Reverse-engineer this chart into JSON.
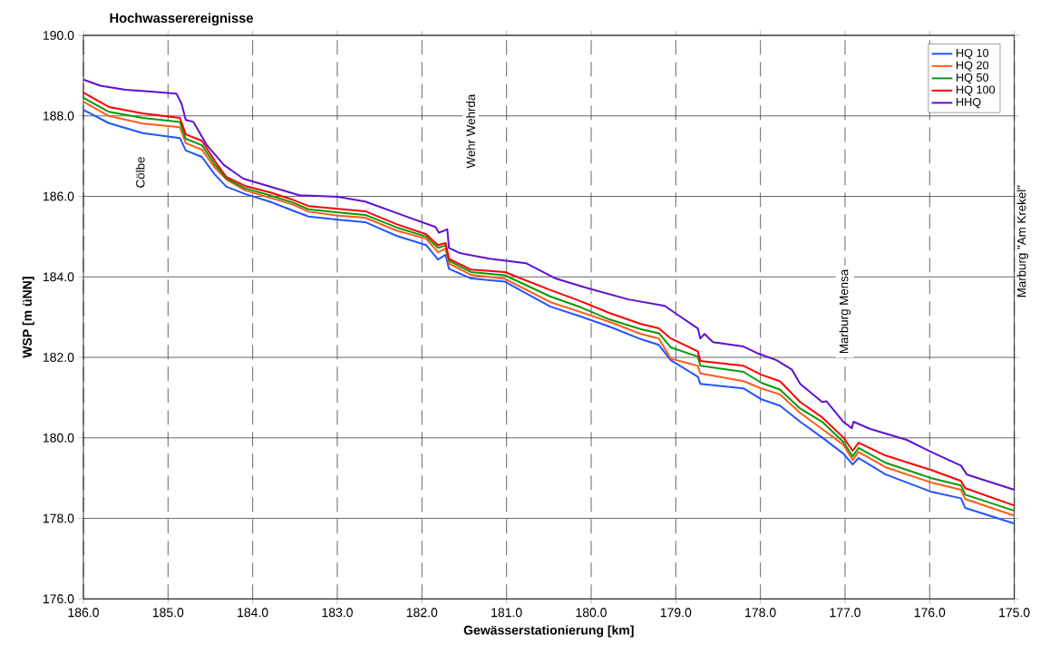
{
  "chart_data": {
    "type": "line",
    "title": "Hochwasserereignisse",
    "xlabel": "Gewässerstationierung [km]",
    "ylabel": "WSP [m üNN]",
    "x": [
      186.0,
      185.7,
      185.3,
      184.86,
      184.79,
      184.6,
      184.45,
      184.31,
      184.09,
      183.8,
      183.53,
      183.34,
      182.99,
      182.67,
      182.3,
      181.95,
      181.81,
      181.72,
      181.68,
      181.42,
      181.02,
      180.48,
      180.13,
      179.78,
      179.41,
      179.2,
      179.06,
      178.74,
      178.71,
      178.2,
      177.99,
      177.77,
      177.53,
      177.27,
      177.02,
      176.91,
      176.84,
      176.52,
      175.98,
      175.63,
      175.58,
      175.0
    ],
    "series": [
      {
        "name": "HQ 10",
        "color": "#2255ff",
        "values": [
          188.15,
          187.82,
          187.57,
          187.45,
          187.14,
          186.98,
          186.55,
          186.24,
          186.06,
          185.87,
          185.65,
          185.5,
          185.42,
          185.36,
          185.02,
          184.79,
          184.43,
          184.55,
          184.2,
          183.96,
          183.88,
          183.26,
          183.02,
          182.76,
          182.45,
          182.31,
          181.93,
          181.52,
          181.34,
          181.23,
          180.96,
          180.8,
          180.4,
          180.01,
          179.61,
          179.34,
          179.5,
          179.09,
          178.66,
          178.5,
          178.26,
          177.87
        ]
      },
      {
        "name": "HQ 20",
        "color": "#ff5a1e",
        "values": [
          188.35,
          188.0,
          187.81,
          187.72,
          187.32,
          187.16,
          186.72,
          186.42,
          186.15,
          185.97,
          185.8,
          185.62,
          185.52,
          185.47,
          185.15,
          184.95,
          184.61,
          184.7,
          184.33,
          184.05,
          183.95,
          183.37,
          183.13,
          182.88,
          182.58,
          182.47,
          181.97,
          181.79,
          181.6,
          181.41,
          181.23,
          181.08,
          180.62,
          180.22,
          179.83,
          179.45,
          179.65,
          179.27,
          178.89,
          178.71,
          178.48,
          178.07
        ]
      },
      {
        "name": "HQ 50",
        "color": "#0a9a0a",
        "values": [
          188.45,
          188.1,
          187.95,
          187.85,
          187.43,
          187.27,
          186.8,
          186.44,
          186.2,
          186.03,
          185.85,
          185.68,
          185.6,
          185.54,
          185.23,
          185.0,
          184.72,
          184.78,
          184.4,
          184.12,
          184.04,
          183.51,
          183.25,
          182.94,
          182.7,
          182.6,
          182.25,
          182.02,
          181.79,
          181.64,
          181.37,
          181.2,
          180.73,
          180.4,
          179.9,
          179.54,
          179.75,
          179.38,
          179.0,
          178.82,
          178.59,
          178.19
        ]
      },
      {
        "name": "HQ 100",
        "color": "#ff0000",
        "values": [
          188.58,
          188.22,
          188.06,
          187.95,
          187.54,
          187.38,
          186.89,
          186.48,
          186.26,
          186.1,
          185.92,
          185.76,
          185.69,
          185.63,
          185.31,
          185.06,
          184.79,
          184.84,
          184.45,
          184.18,
          184.12,
          183.67,
          183.4,
          183.1,
          182.83,
          182.72,
          182.47,
          182.15,
          181.91,
          181.79,
          181.57,
          181.41,
          180.89,
          180.51,
          180.01,
          179.68,
          179.88,
          179.56,
          179.2,
          178.93,
          178.75,
          178.32
        ]
      },
      {
        "name": "HHQ",
        "color": "#6010d0",
        "x": [
          186.0,
          185.8,
          185.5,
          185.2,
          184.9,
          184.84,
          184.79,
          184.7,
          184.54,
          184.34,
          184.11,
          183.45,
          182.99,
          182.67,
          182.24,
          181.84,
          181.8,
          181.7,
          181.68,
          181.55,
          181.2,
          180.77,
          180.42,
          180.06,
          179.56,
          179.13,
          178.98,
          178.74,
          178.71,
          178.66,
          178.56,
          178.2,
          178.02,
          177.81,
          177.63,
          177.53,
          177.27,
          177.22,
          177.02,
          176.92,
          176.9,
          176.7,
          176.27,
          175.98,
          175.63,
          175.56,
          175.0
        ],
        "values": [
          188.9,
          188.75,
          188.65,
          188.6,
          188.55,
          188.3,
          187.9,
          187.85,
          187.27,
          186.78,
          186.44,
          186.03,
          185.99,
          185.87,
          185.54,
          185.24,
          185.1,
          185.18,
          184.72,
          184.59,
          184.45,
          184.34,
          183.96,
          183.73,
          183.44,
          183.28,
          183.06,
          182.72,
          182.47,
          182.58,
          182.38,
          182.27,
          182.09,
          181.93,
          181.7,
          181.34,
          180.89,
          180.91,
          180.4,
          180.24,
          180.4,
          180.22,
          179.95,
          179.65,
          179.31,
          179.09,
          178.71
        ]
      }
    ],
    "xlim": [
      186,
      175
    ],
    "xticks": [
      {
        "value": 186,
        "label": "186.0"
      },
      {
        "value": 185,
        "label": "185.0"
      },
      {
        "value": 184,
        "label": "184.0"
      },
      {
        "value": 183,
        "label": "183.0"
      },
      {
        "value": 182,
        "label": "182.0"
      },
      {
        "value": 181,
        "label": "181.0"
      },
      {
        "value": 180,
        "label": "180.0"
      },
      {
        "value": 179,
        "label": "179.0"
      },
      {
        "value": 178,
        "label": "178.0"
      },
      {
        "value": 177,
        "label": "177.0"
      },
      {
        "value": 176,
        "label": "176.0"
      },
      {
        "value": 175,
        "label": "175.0"
      }
    ],
    "ylim": [
      176,
      190
    ],
    "yticks": [
      {
        "value": 176,
        "label": "176.0"
      },
      {
        "value": 178,
        "label": "178.0"
      },
      {
        "value": 180,
        "label": "180.0"
      },
      {
        "value": 182,
        "label": "182.0"
      },
      {
        "value": 184,
        "label": "184.0"
      },
      {
        "value": 186,
        "label": "186.0"
      },
      {
        "value": 188,
        "label": "188.0"
      },
      {
        "value": 190,
        "label": "190.0"
      }
    ],
    "annotations": [
      "Cölbe",
      "Wehr Wehrda",
      "Marburg Mensa",
      "Marburg \"Am Krekel\""
    ],
    "grid": true,
    "legend": "top right",
    "marker": "none",
    "line_style": "solid"
  }
}
